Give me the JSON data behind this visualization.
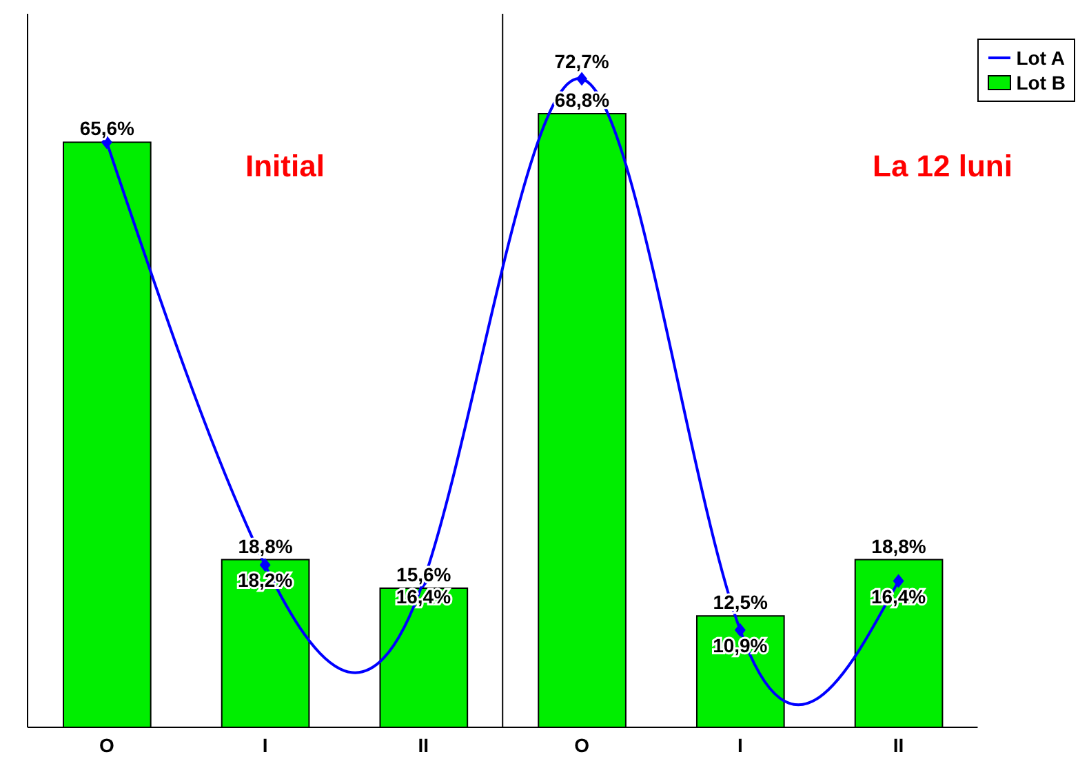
{
  "chart_data": {
    "type": "bar",
    "categories": [
      "O",
      "I",
      "II",
      "O",
      "I",
      "II"
    ],
    "ylim": [
      0,
      80
    ],
    "tick_labels": "x",
    "legend": "top right",
    "grid": false,
    "series": [
      {
        "name": "Lot A",
        "type": "line",
        "color": "#0000ff",
        "marker": "diamond",
        "values": [
          65.6,
          18.2,
          16.4,
          72.7,
          10.9,
          16.4
        ],
        "value_labels": [
          null,
          "18,2%",
          "16,4%",
          "72,7%",
          "10,9%",
          "16,4%"
        ]
      },
      {
        "name": "Lot B",
        "color": "#00ee00",
        "values": [
          65.6,
          18.8,
          15.6,
          68.8,
          12.5,
          18.8
        ],
        "value_labels": [
          "65,6%",
          "18,8%",
          "15,6%",
          "68,8%",
          "12,5%",
          "18,8%"
        ]
      }
    ],
    "annotations": [
      "Initial",
      "La 12 luni"
    ]
  }
}
